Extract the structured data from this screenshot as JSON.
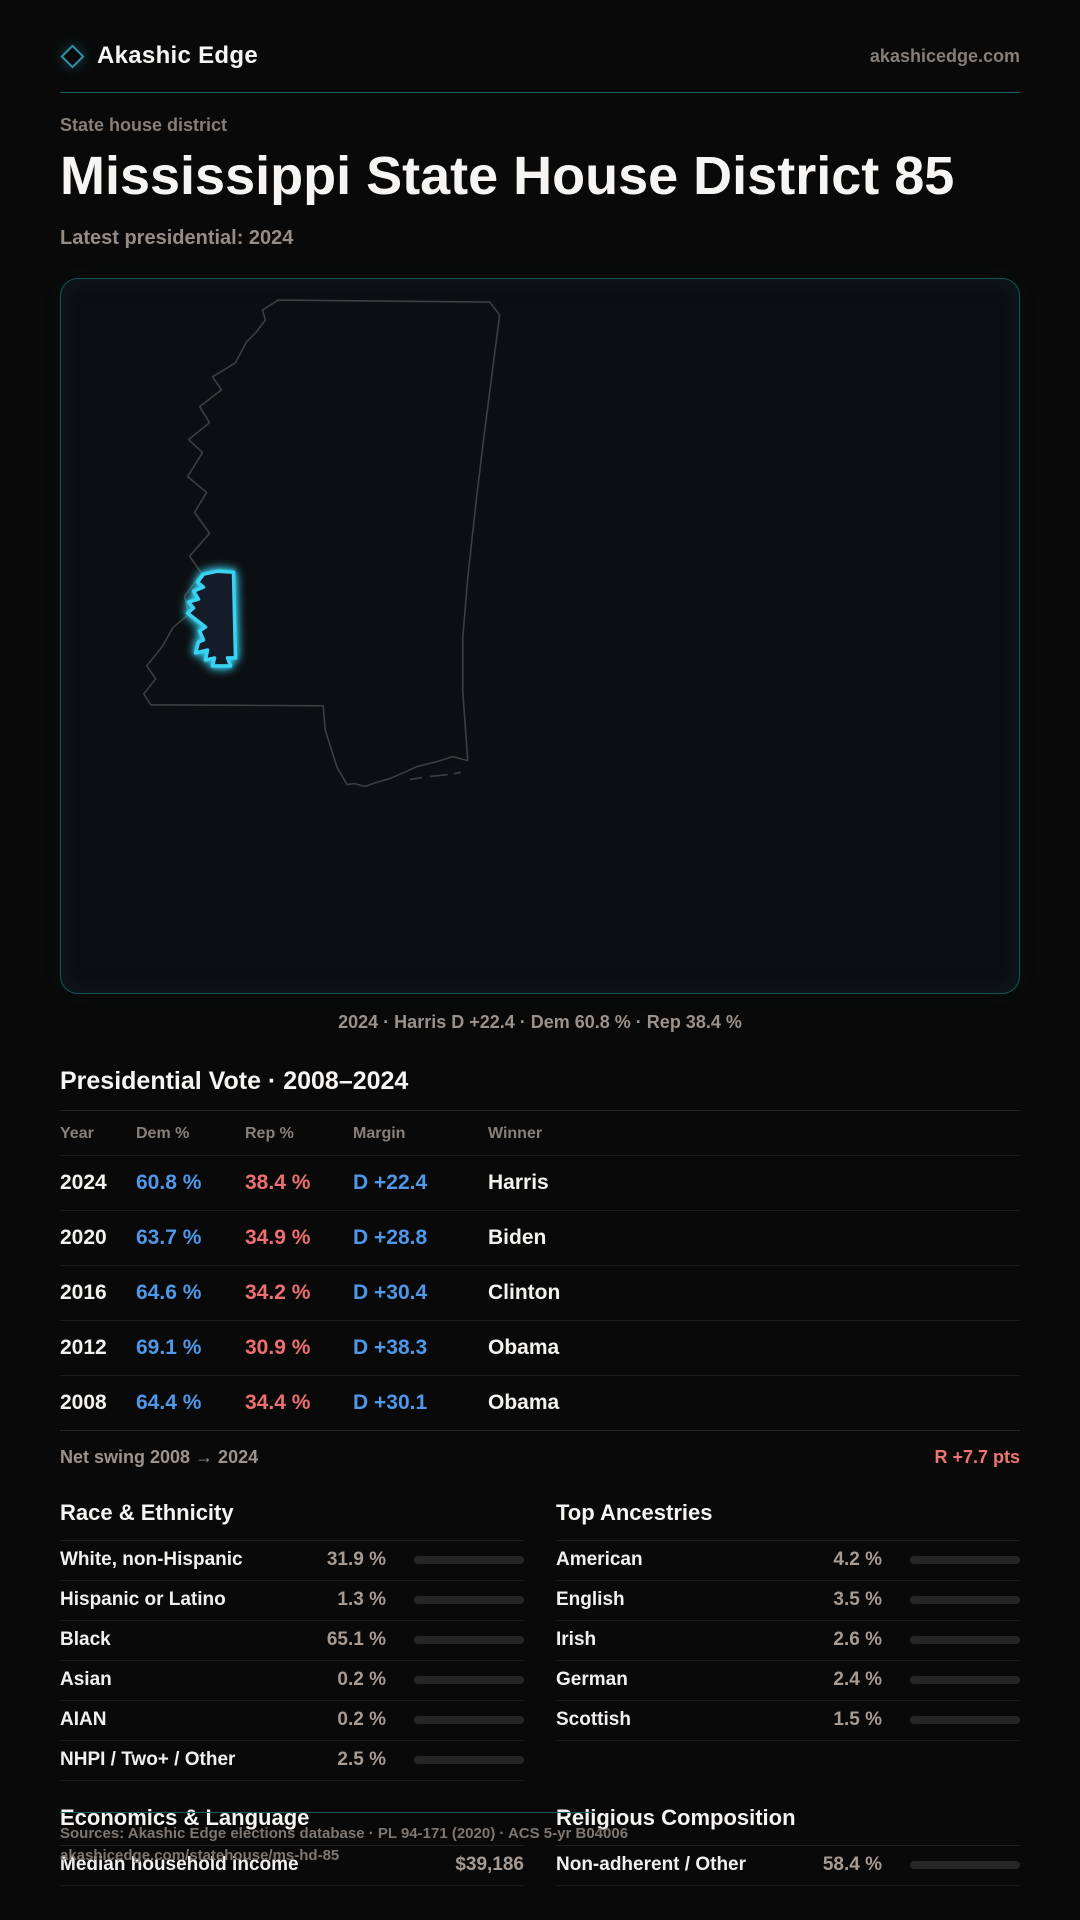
{
  "brand": {
    "name": "Akashic Edge",
    "domain": "akashicedge.com"
  },
  "header": {
    "kicker": "State house district",
    "title": "Mississippi State House District 85",
    "subtitle": "Latest presidential: 2024"
  },
  "map": {
    "caption": "2024 · Harris D +22.4 · Dem 60.8 % · Rep 38.4 %"
  },
  "vote_table": {
    "title": "Presidential Vote · 2008–2024",
    "columns": [
      "Year",
      "Dem %",
      "Rep %",
      "Margin",
      "Winner"
    ],
    "rows": [
      {
        "year": "2024",
        "dem": "60.8 %",
        "rep": "38.4 %",
        "margin": "D +22.4",
        "winner": "Harris"
      },
      {
        "year": "2020",
        "dem": "63.7 %",
        "rep": "34.9 %",
        "margin": "D +28.8",
        "winner": "Biden"
      },
      {
        "year": "2016",
        "dem": "64.6 %",
        "rep": "34.2 %",
        "margin": "D +30.4",
        "winner": "Clinton"
      },
      {
        "year": "2012",
        "dem": "69.1 %",
        "rep": "30.9 %",
        "margin": "D +38.3",
        "winner": "Obama"
      },
      {
        "year": "2008",
        "dem": "64.4 %",
        "rep": "34.4 %",
        "margin": "D +30.1",
        "winner": "Obama"
      }
    ],
    "net_swing_label": "Net swing 2008 → 2024",
    "net_swing_value": "R +7.7 pts"
  },
  "race": {
    "title": "Race & Ethnicity",
    "rows": [
      {
        "label": "White, non-Hispanic",
        "value": "31.9 %",
        "pct": 31.9
      },
      {
        "label": "Hispanic or Latino",
        "value": "1.3 %",
        "pct": 1.3
      },
      {
        "label": "Black",
        "value": "65.1 %",
        "pct": 65.1
      },
      {
        "label": "Asian",
        "value": "0.2 %",
        "pct": 0.2
      },
      {
        "label": "AIAN",
        "value": "0.2 %",
        "pct": 0.2
      },
      {
        "label": "NHPI / Two+ / Other",
        "value": "2.5 %",
        "pct": 2.5
      }
    ]
  },
  "ancestries": {
    "title": "Top Ancestries",
    "rows": [
      {
        "label": "American",
        "value": "4.2 %",
        "pct": 4.2
      },
      {
        "label": "English",
        "value": "3.5 %",
        "pct": 3.5
      },
      {
        "label": "Irish",
        "value": "2.6 %",
        "pct": 2.6
      },
      {
        "label": "German",
        "value": "2.4 %",
        "pct": 2.4
      },
      {
        "label": "Scottish",
        "value": "1.5 %",
        "pct": 1.5
      }
    ]
  },
  "economics": {
    "title": "Economics & Language",
    "rows": [
      {
        "label": "Median household income",
        "value": "$39,186",
        "pct": null
      }
    ]
  },
  "religion": {
    "title": "Religious Composition",
    "rows": [
      {
        "label": "Non-adherent / Other",
        "value": "58.4 %",
        "pct": 58.4
      }
    ]
  },
  "footer": {
    "sources": "Sources: Akashic Edge elections database · PL 94-171 (2020) · ACS 5-yr B04006",
    "url": "akashicedge.com/statehouse/ms-hd-85"
  },
  "colors": {
    "accent_teal": "#1a5f6a",
    "district_cyan": "#38d2f2",
    "dem_blue": "#4f97e8",
    "rep_red": "#ee6f70",
    "swing_red": "#f07474"
  }
}
